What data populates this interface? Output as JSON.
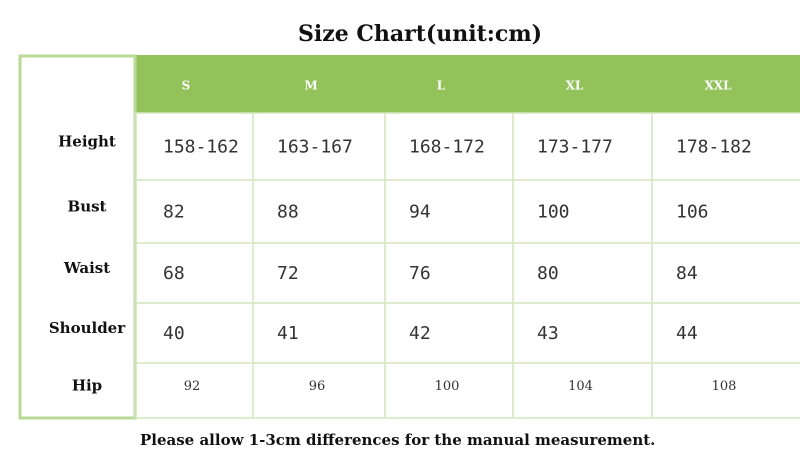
{
  "title": "Size Chart(unit:cm)",
  "table": {
    "header": [
      "S",
      "M",
      "L",
      "XL",
      "XXL"
    ],
    "row_labels": [
      "Height",
      "Bust",
      "Waist",
      "Shoulder",
      "Hip"
    ],
    "rows": [
      [
        "158-162",
        "163-167",
        "168-172",
        "173-177",
        "178-182"
      ],
      [
        "82",
        "88",
        "94",
        "100",
        "106"
      ],
      [
        "68",
        "72",
        "76",
        "80",
        "84"
      ],
      [
        "40",
        "41",
        "42",
        "43",
        "44"
      ],
      [
        "92",
        "96",
        "100",
        "104",
        "108"
      ]
    ]
  },
  "note": "Please allow 1-3cm differences for the manual measurement."
}
